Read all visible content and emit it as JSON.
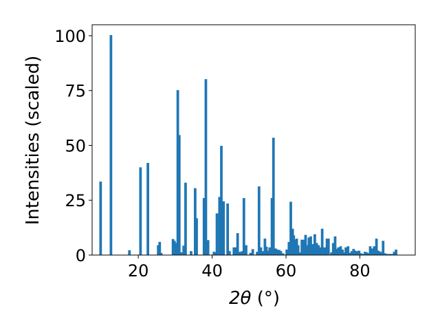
{
  "chart_data": {
    "type": "bar",
    "xlabel_math": "2θ",
    "xlabel_unit": " (°)",
    "ylabel": "Intensities (scaled)",
    "xlim": [
      7.5,
      95.0
    ],
    "ylim": [
      0,
      105
    ],
    "x_ticks": [
      20,
      40,
      60,
      80
    ],
    "y_ticks": [
      0,
      25,
      50,
      75,
      100
    ],
    "bar_width": 0.7,
    "bar_color": "#1f77b4",
    "grid": false,
    "legend": "none",
    "x": [
      9.8,
      12.6,
      17.6,
      20.6,
      22.6,
      25.4,
      25.8,
      26.2,
      29.4,
      29.8,
      30.3,
      30.7,
      31.1,
      31.6,
      32.3,
      32.8,
      34.3,
      35.4,
      35.8,
      37.8,
      38.3,
      38.9,
      40.5,
      41.0,
      41.3,
      42.0,
      42.5,
      43.1,
      44.2,
      44.7,
      45.9,
      46.3,
      46.9,
      47.6,
      48.2,
      48.6,
      49.2,
      50.4,
      51.0,
      52.2,
      52.7,
      53.2,
      53.8,
      54.3,
      54.7,
      55.1,
      55.6,
      56.2,
      56.6,
      57.2,
      57.7,
      58.2,
      58.6,
      59.2,
      60.2,
      60.8,
      61.3,
      61.8,
      62.1,
      62.5,
      62.9,
      63.3,
      63.7,
      64.3,
      64.7,
      65.3,
      65.8,
      66.2,
      66.7,
      67.3,
      67.8,
      68.3,
      68.8,
      69.2,
      69.8,
      70.5,
      71.1,
      71.5,
      72.3,
      72.8,
      73.3,
      73.8,
      74.2,
      74.8,
      75.3,
      75.8,
      76.2,
      76.8,
      77.2,
      77.8,
      78.3,
      78.7,
      79.3,
      79.8,
      80.4,
      80.9,
      81.4,
      81.9,
      82.4,
      82.8,
      83.4,
      83.9,
      84.5,
      85.0,
      85.6,
      86.3,
      86.8,
      87.3,
      87.9,
      88.3,
      88.7,
      89.3,
      89.8
    ],
    "values": [
      33.5,
      100.3,
      2.2,
      40.0,
      42.0,
      4.5,
      6.0,
      1.0,
      7.3,
      6.5,
      5.5,
      75.2,
      54.7,
      1.3,
      4.3,
      33.0,
      1.8,
      30.5,
      16.8,
      26.0,
      80.2,
      6.8,
      1.5,
      1.2,
      19.0,
      26.5,
      49.8,
      24.5,
      23.5,
      1.8,
      3.5,
      3.5,
      10.0,
      1.5,
      1.8,
      26.0,
      4.5,
      1.0,
      2.7,
      1.5,
      31.3,
      3.5,
      1.8,
      7.5,
      3.8,
      2.0,
      3.5,
      26.0,
      53.5,
      3.0,
      2.5,
      2.3,
      1.8,
      0.8,
      2.5,
      6.0,
      24.3,
      12.0,
      9.0,
      7.0,
      7.5,
      4.5,
      1.2,
      7.0,
      7.0,
      9.2,
      4.5,
      8.0,
      8.5,
      5.0,
      9.5,
      5.5,
      4.5,
      3.5,
      12.0,
      3.5,
      7.5,
      7.5,
      1.2,
      5.5,
      8.5,
      2.8,
      3.5,
      4.0,
      2.5,
      1.2,
      3.5,
      4.0,
      1.0,
      1.8,
      2.8,
      2.0,
      1.8,
      2.0,
      0.8,
      0.5,
      1.5,
      1.2,
      0.8,
      4.0,
      3.0,
      4.0,
      7.5,
      2.0,
      1.5,
      6.5,
      0.8,
      0.5,
      0.5,
      0.5,
      0.5,
      1.5,
      2.5
    ]
  }
}
